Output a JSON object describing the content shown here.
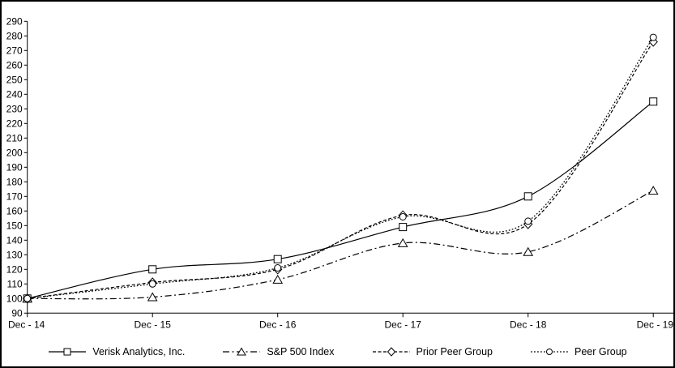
{
  "chart_data": {
    "type": "line",
    "title": "",
    "xlabel": "",
    "ylabel": "",
    "categories": [
      "Dec - 14",
      "Dec - 15",
      "Dec - 16",
      "Dec - 17",
      "Dec - 18",
      "Dec - 19"
    ],
    "series": [
      {
        "name": "Verisk Analytics, Inc.",
        "marker": "square",
        "line_style": "solid",
        "values": [
          100,
          120,
          127,
          149,
          170,
          235
        ]
      },
      {
        "name": "S&P 500 Index",
        "marker": "triangle",
        "line_style": "dashdot",
        "values": [
          100,
          101,
          113,
          138,
          132,
          174
        ]
      },
      {
        "name": "Prior Peer Group",
        "marker": "diamond",
        "line_style": "dashed",
        "values": [
          100,
          111,
          120,
          157,
          151,
          276
        ]
      },
      {
        "name": "Peer Group",
        "marker": "circle",
        "line_style": "dotted",
        "values": [
          100,
          110,
          121,
          156,
          153,
          279
        ]
      }
    ],
    "ylim": [
      90,
      290
    ],
    "ytick_step": 10,
    "grid": false,
    "legend_position": "bottom",
    "line_color": "#000000",
    "marker_fill": "#ffffff",
    "background": "#ffffff",
    "border_color": "#000000"
  }
}
